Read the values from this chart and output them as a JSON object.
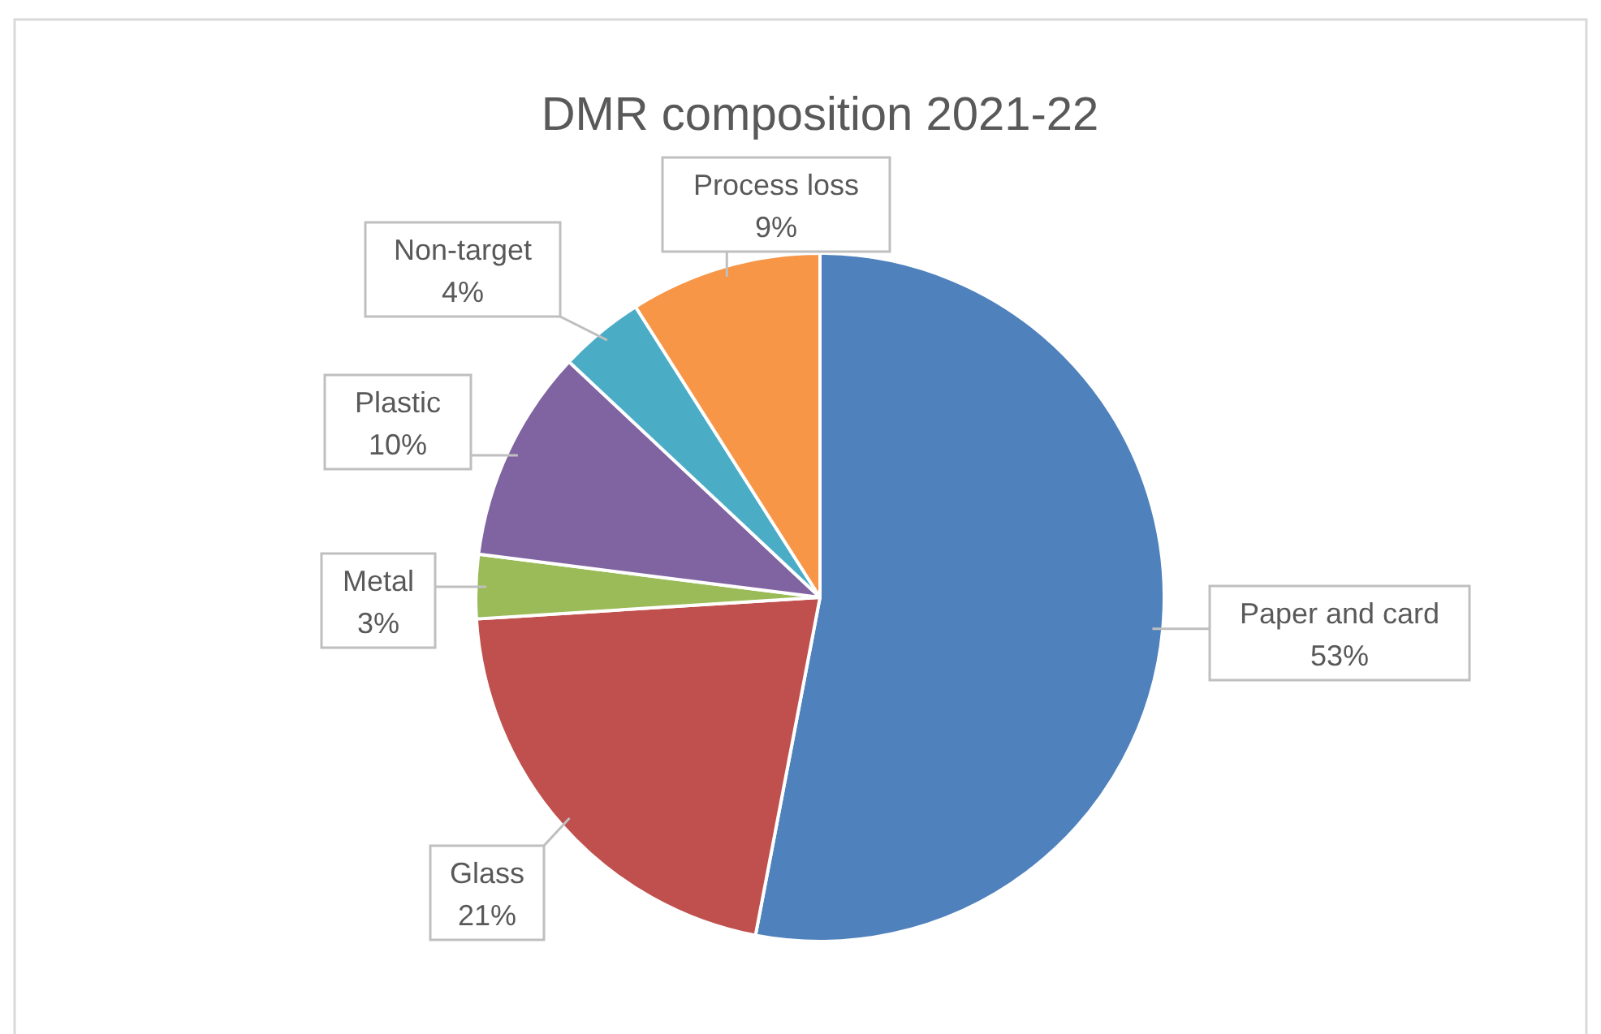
{
  "chart_data": {
    "type": "pie",
    "title": "DMR composition 2021-22",
    "categories": [
      "Paper and card",
      "Glass",
      "Metal",
      "Plastic",
      "Non-target",
      "Process loss"
    ],
    "values": [
      53,
      21,
      3,
      10,
      4,
      9
    ],
    "value_labels": [
      "53%",
      "21%",
      "3%",
      "10%",
      "4%",
      "9%"
    ],
    "colors": [
      "#4f81bd",
      "#c0504d",
      "#9bbb59",
      "#8064a2",
      "#4bacc6",
      "#f79646"
    ]
  }
}
